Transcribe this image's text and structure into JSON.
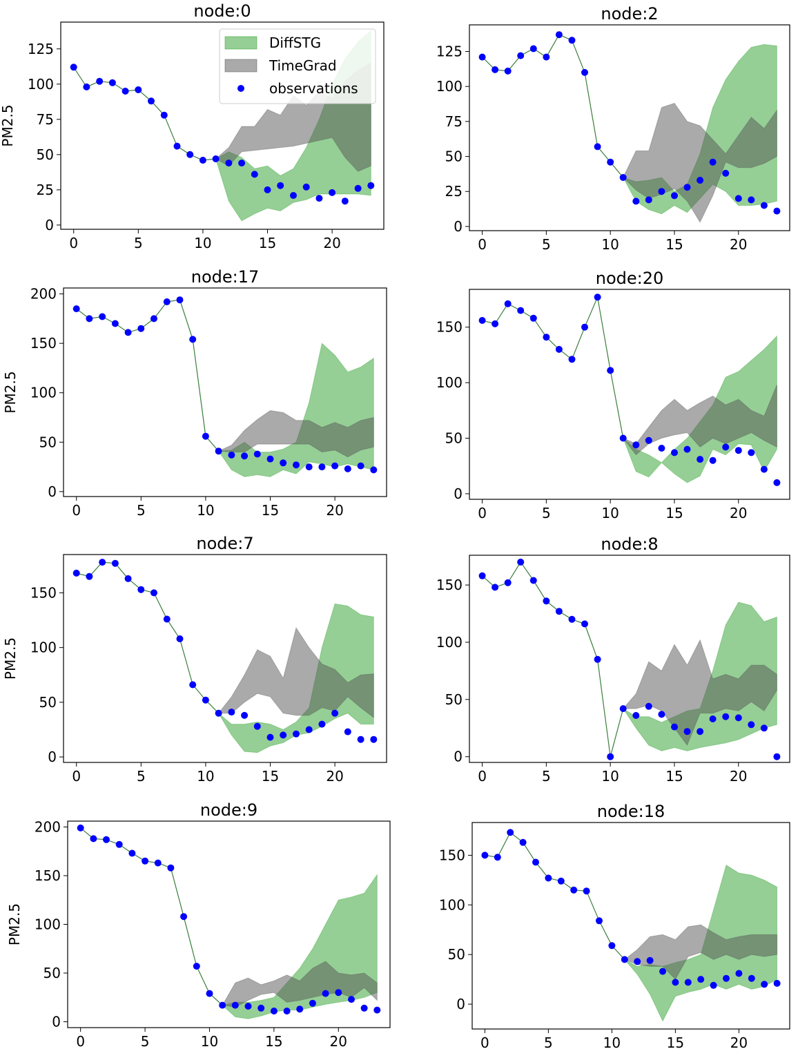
{
  "figure": {
    "legend_location": "upper-right of first panel"
  },
  "legend": {
    "items": [
      {
        "label": "DiffSTG",
        "kind": "band",
        "color": "#2ca02c"
      },
      {
        "label": "TimeGrad",
        "kind": "band",
        "color": "#555555"
      },
      {
        "label": "observations",
        "kind": "marker",
        "color": "#0000ff"
      }
    ]
  },
  "colors": {
    "diffstg": "#2ca02c",
    "timegrad": "#555555",
    "observation": "#0000ff",
    "history_line": "#3a7d3a"
  },
  "chart_data": [
    {
      "type": "line",
      "title": "node:0",
      "ylabel": "PM2.5",
      "xlabel": "",
      "xlim": [
        -1,
        24
      ],
      "ylim": [
        -3,
        144
      ],
      "xticks": [
        0,
        5,
        10,
        15,
        20
      ],
      "yticks": [
        0,
        25,
        50,
        75,
        100,
        125
      ],
      "observations": [
        112,
        98,
        102,
        101,
        95,
        96,
        88,
        78,
        56,
        50,
        46,
        47,
        44,
        44,
        36,
        25,
        28,
        21,
        27,
        19,
        23,
        17,
        26,
        28
      ],
      "history_end": 11,
      "diffstg_band": {
        "x": [
          11,
          12,
          13,
          14,
          15,
          16,
          17,
          18,
          19,
          20,
          21,
          22,
          23
        ],
        "lower": [
          47,
          17,
          3,
          8,
          12,
          10,
          16,
          18,
          22,
          22,
          22,
          22,
          21
        ],
        "upper": [
          47,
          52,
          48,
          40,
          42,
          35,
          40,
          55,
          75,
          100,
          118,
          130,
          138
        ]
      },
      "timegrad_band": {
        "x": [
          11,
          12,
          13,
          14,
          15,
          16,
          17,
          18,
          19,
          20,
          21,
          22,
          23
        ],
        "lower": [
          47,
          42,
          52,
          53,
          54,
          55,
          56,
          58,
          60,
          62,
          48,
          38,
          42
        ],
        "upper": [
          47,
          55,
          70,
          70,
          82,
          78,
          92,
          85,
          95,
          90,
          102,
          110,
          115
        ]
      }
    },
    {
      "type": "line",
      "title": "node:2",
      "ylabel": "",
      "xlabel": "",
      "xlim": [
        -1,
        24
      ],
      "ylim": [
        -3,
        144
      ],
      "xticks": [
        0,
        5,
        10,
        15,
        20
      ],
      "yticks": [
        0,
        25,
        50,
        75,
        100,
        125
      ],
      "observations": [
        121,
        112,
        111,
        122,
        127,
        121,
        137,
        133,
        110,
        57,
        46,
        35,
        18,
        19,
        25,
        22,
        28,
        33,
        46,
        38,
        20,
        19,
        15,
        11
      ],
      "history_end": 11,
      "diffstg_band": {
        "x": [
          11,
          12,
          13,
          14,
          15,
          16,
          17,
          18,
          19,
          20,
          21,
          22,
          23
        ],
        "lower": [
          35,
          18,
          12,
          9,
          15,
          10,
          20,
          30,
          25,
          15,
          15,
          16,
          18
        ],
        "upper": [
          35,
          32,
          33,
          35,
          25,
          30,
          52,
          85,
          105,
          118,
          128,
          130,
          129
        ]
      },
      "timegrad_band": {
        "x": [
          11,
          12,
          13,
          14,
          15,
          16,
          17,
          18,
          19,
          20,
          21,
          22,
          23
        ],
        "lower": [
          35,
          26,
          20,
          23,
          27,
          18,
          3,
          22,
          46,
          42,
          42,
          45,
          50
        ],
        "upper": [
          35,
          54,
          54,
          85,
          88,
          75,
          72,
          62,
          52,
          65,
          78,
          70,
          83
        ]
      }
    },
    {
      "type": "line",
      "title": "node:17",
      "ylabel": "PM2.5",
      "xlabel": "",
      "xlim": [
        -1,
        24
      ],
      "ylim": [
        -5,
        206
      ],
      "xticks": [
        0,
        5,
        10,
        15,
        20
      ],
      "yticks": [
        0,
        50,
        100,
        150,
        200
      ],
      "observations": [
        185,
        175,
        177,
        170,
        161,
        165,
        175,
        192,
        194,
        154,
        56,
        41,
        37,
        36,
        38,
        33,
        29,
        27,
        25,
        25,
        26,
        23,
        26,
        22
      ],
      "history_end": 11,
      "diffstg_band": {
        "x": [
          11,
          12,
          13,
          14,
          15,
          16,
          17,
          18,
          19,
          20,
          21,
          22,
          23
        ],
        "lower": [
          41,
          22,
          15,
          17,
          15,
          22,
          18,
          30,
          28,
          25,
          28,
          25,
          22
        ],
        "upper": [
          41,
          42,
          50,
          40,
          40,
          43,
          50,
          90,
          150,
          138,
          121,
          126,
          135
        ]
      },
      "timegrad_band": {
        "x": [
          11,
          12,
          13,
          14,
          15,
          16,
          17,
          18,
          19,
          20,
          21,
          22,
          23
        ],
        "lower": [
          41,
          40,
          40,
          48,
          48,
          48,
          48,
          48,
          40,
          42,
          35,
          42,
          45
        ],
        "upper": [
          41,
          47,
          62,
          73,
          82,
          80,
          72,
          72,
          65,
          70,
          65,
          72,
          75
        ]
      }
    },
    {
      "type": "line",
      "title": "node:20",
      "ylabel": "",
      "xlabel": "",
      "xlim": [
        -1,
        24
      ],
      "ylim": [
        -5,
        184
      ],
      "xticks": [
        0,
        5,
        10,
        15,
        20
      ],
      "yticks": [
        0,
        50,
        100,
        150
      ],
      "observations": [
        156,
        153,
        171,
        165,
        158,
        141,
        130,
        121,
        150,
        177,
        111,
        50,
        44,
        48,
        41,
        37,
        40,
        31,
        30,
        42,
        39,
        37,
        22,
        10
      ],
      "history_end": 11,
      "diffstg_band": {
        "x": [
          11,
          12,
          13,
          14,
          15,
          16,
          17,
          18,
          19,
          20,
          21,
          22,
          23
        ],
        "lower": [
          50,
          20,
          15,
          28,
          18,
          10,
          16,
          40,
          35,
          45,
          44,
          20,
          40
        ],
        "upper": [
          50,
          40,
          35,
          28,
          40,
          50,
          65,
          80,
          105,
          110,
          120,
          130,
          142
        ]
      },
      "timegrad_band": {
        "x": [
          11,
          12,
          13,
          14,
          15,
          16,
          17,
          18,
          19,
          20,
          21,
          22,
          23
        ],
        "lower": [
          50,
          35,
          45,
          50,
          53,
          55,
          42,
          50,
          45,
          50,
          55,
          48,
          42
        ],
        "upper": [
          50,
          45,
          60,
          75,
          85,
          75,
          82,
          88,
          80,
          85,
          75,
          70,
          98
        ]
      }
    },
    {
      "type": "line",
      "title": "node:7",
      "ylabel": "PM2.5",
      "xlabel": "",
      "xlim": [
        -1,
        24
      ],
      "ylim": [
        -5,
        185
      ],
      "xticks": [
        0,
        5,
        10,
        15,
        20
      ],
      "yticks": [
        0,
        50,
        100,
        150
      ],
      "observations": [
        168,
        165,
        178,
        177,
        163,
        153,
        150,
        126,
        108,
        66,
        52,
        40,
        41,
        38,
        28,
        18,
        20,
        21,
        25,
        30,
        40,
        23,
        16,
        16
      ],
      "history_end": 11,
      "diffstg_band": {
        "x": [
          11,
          12,
          13,
          14,
          15,
          16,
          17,
          18,
          19,
          20,
          21,
          22,
          23
        ],
        "lower": [
          40,
          20,
          5,
          4,
          10,
          13,
          20,
          22,
          28,
          35,
          40,
          30,
          30
        ],
        "upper": [
          40,
          30,
          30,
          32,
          30,
          25,
          32,
          45,
          100,
          140,
          138,
          130,
          128
        ]
      },
      "timegrad_band": {
        "x": [
          11,
          12,
          13,
          14,
          15,
          16,
          17,
          18,
          19,
          20,
          21,
          22,
          23
        ],
        "lower": [
          40,
          40,
          50,
          58,
          55,
          40,
          38,
          38,
          45,
          42,
          55,
          45,
          36
        ],
        "upper": [
          40,
          55,
          75,
          98,
          92,
          72,
          118,
          100,
          85,
          80,
          68,
          75,
          76
        ]
      }
    },
    {
      "type": "line",
      "title": "node:8",
      "ylabel": "",
      "xlabel": "",
      "xlim": [
        -1,
        24
      ],
      "ylim": [
        -5,
        176
      ],
      "xticks": [
        0,
        5,
        10,
        15,
        20
      ],
      "yticks": [
        0,
        50,
        100,
        150
      ],
      "observations": [
        158,
        148,
        152,
        170,
        154,
        136,
        127,
        120,
        116,
        85,
        0,
        42,
        36,
        44,
        37,
        26,
        22,
        22,
        33,
        35,
        34,
        28,
        25,
        0
      ],
      "history_end": 11,
      "diffstg_band": {
        "x": [
          11,
          12,
          13,
          14,
          15,
          16,
          17,
          18,
          19,
          20,
          21,
          22,
          23
        ],
        "lower": [
          42,
          25,
          10,
          5,
          8,
          5,
          8,
          10,
          12,
          15,
          20,
          25,
          28
        ],
        "upper": [
          42,
          35,
          35,
          30,
          35,
          40,
          42,
          75,
          115,
          135,
          132,
          118,
          122
        ]
      },
      "timegrad_band": {
        "x": [
          11,
          12,
          13,
          14,
          15,
          16,
          17,
          18,
          19,
          20,
          21,
          22,
          23
        ],
        "lower": [
          42,
          42,
          45,
          40,
          25,
          10,
          38,
          38,
          42,
          40,
          48,
          40,
          58
        ],
        "upper": [
          42,
          55,
          83,
          75,
          98,
          80,
          102,
          68,
          72,
          68,
          80,
          80,
          72
        ]
      }
    },
    {
      "type": "line",
      "title": "node:9",
      "ylabel": "PM2.5",
      "xlabel": "",
      "xlim": [
        -1,
        24
      ],
      "ylim": [
        -6,
        206
      ],
      "xticks": [
        0,
        5,
        10,
        15,
        20
      ],
      "yticks": [
        0,
        50,
        100,
        150,
        200
      ],
      "observations": [
        199,
        188,
        187,
        182,
        173,
        165,
        163,
        158,
        108,
        57,
        29,
        17,
        17,
        16,
        14,
        11,
        11,
        13,
        19,
        29,
        30,
        23,
        14,
        12
      ],
      "history_end": 11,
      "diffstg_band": {
        "x": [
          11,
          12,
          13,
          14,
          15,
          16,
          17,
          18,
          19,
          20,
          21,
          22,
          23
        ],
        "lower": [
          17,
          5,
          3,
          6,
          10,
          12,
          12,
          15,
          18,
          20,
          22,
          25,
          30
        ],
        "upper": [
          17,
          20,
          20,
          22,
          25,
          40,
          55,
          75,
          100,
          125,
          128,
          132,
          151
        ]
      },
      "timegrad_band": {
        "x": [
          11,
          12,
          13,
          14,
          15,
          16,
          17,
          18,
          19,
          20,
          21,
          22,
          23
        ],
        "lower": [
          17,
          15,
          22,
          28,
          30,
          20,
          22,
          25,
          28,
          30,
          25,
          35,
          22
        ],
        "upper": [
          17,
          40,
          45,
          38,
          42,
          48,
          42,
          55,
          62,
          50,
          48,
          50,
          40
        ]
      }
    },
    {
      "type": "line",
      "title": "node:18",
      "ylabel": "",
      "xlabel": "",
      "xlim": [
        -1,
        24
      ],
      "ylim": [
        -25,
        183
      ],
      "xticks": [
        0,
        5,
        10,
        15,
        20
      ],
      "yticks": [
        0,
        50,
        100,
        150
      ],
      "observations": [
        150,
        148,
        173,
        163,
        143,
        127,
        124,
        115,
        114,
        84,
        59,
        45,
        43,
        44,
        33,
        22,
        22,
        25,
        19,
        26,
        31,
        26,
        20,
        21
      ],
      "history_end": 11,
      "diffstg_band": {
        "x": [
          11,
          12,
          13,
          14,
          15,
          16,
          17,
          18,
          19,
          20,
          21,
          22,
          23
        ],
        "lower": [
          45,
          30,
          10,
          -17,
          8,
          12,
          15,
          20,
          15,
          20,
          15,
          18,
          25
        ],
        "upper": [
          45,
          38,
          40,
          38,
          42,
          45,
          50,
          95,
          140,
          132,
          130,
          125,
          118
        ]
      },
      "timegrad_band": {
        "x": [
          11,
          12,
          13,
          14,
          15,
          16,
          17,
          18,
          19,
          20,
          21,
          22,
          23
        ],
        "lower": [
          45,
          40,
          38,
          38,
          25,
          48,
          52,
          45,
          50,
          45,
          50,
          48,
          50
        ],
        "upper": [
          45,
          55,
          68,
          70,
          65,
          78,
          80,
          72,
          65,
          68,
          70,
          70,
          70
        ]
      }
    }
  ]
}
